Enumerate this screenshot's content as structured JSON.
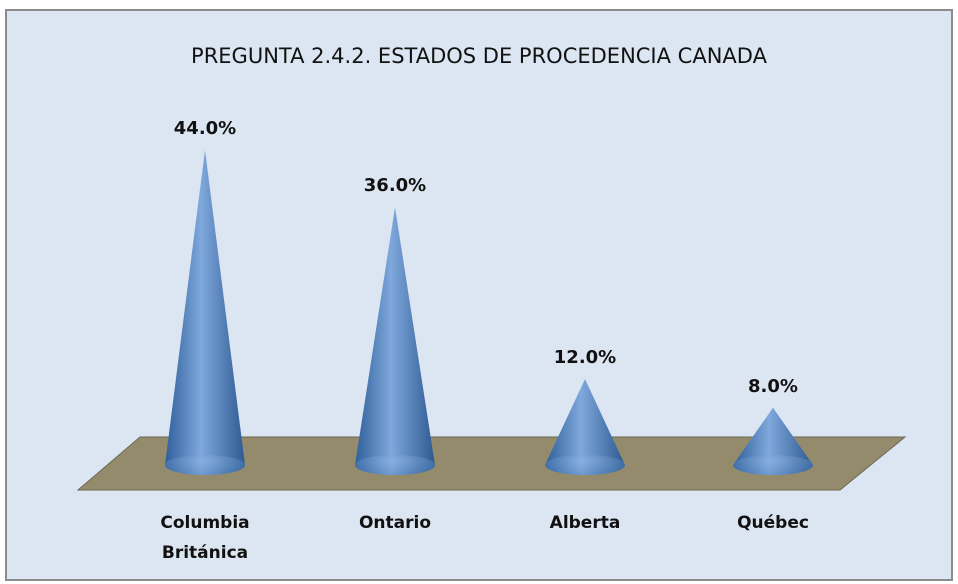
{
  "chart_data": {
    "type": "cone",
    "title": "PREGUNTA 2.4.2. ESTADOS DE PROCEDENCIA CANADA",
    "categories": [
      "Columbia Británica",
      "Ontario",
      "Alberta",
      "Québec"
    ],
    "values": [
      44,
      36,
      12,
      8
    ],
    "value_labels": [
      "44.0%",
      "36.0%",
      "12.0%",
      "8.0%"
    ],
    "color": "#4f81bd"
  }
}
